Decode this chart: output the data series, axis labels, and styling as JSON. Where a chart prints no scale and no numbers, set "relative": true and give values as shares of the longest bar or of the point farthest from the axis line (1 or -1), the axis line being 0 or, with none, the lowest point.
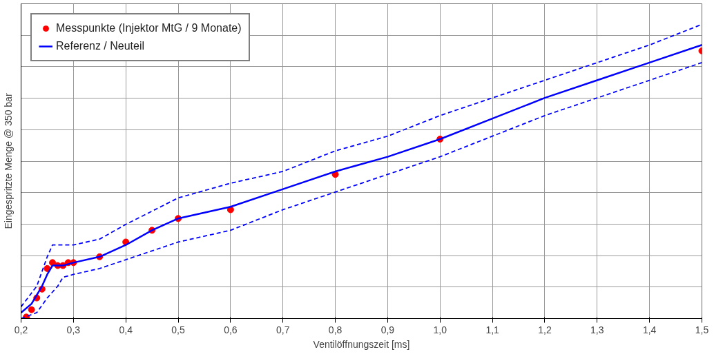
{
  "chart_data": {
    "type": "line",
    "relative": true,
    "xlabel": "Ventilöffnungszeit [ms]",
    "ylabel": "Eingespritzte Menge @ 350 bar",
    "xlim": [
      0.2,
      1.5
    ],
    "xticks": [
      {
        "value": 0.2,
        "label": "0,2"
      },
      {
        "value": 0.3,
        "label": "0,3"
      },
      {
        "value": 0.4,
        "label": "0,4"
      },
      {
        "value": 0.5,
        "label": "0,5"
      },
      {
        "value": 0.6,
        "label": "0,6"
      },
      {
        "value": 0.7,
        "label": "0,7"
      },
      {
        "value": 0.8,
        "label": "0,8"
      },
      {
        "value": 0.9,
        "label": "0,9"
      },
      {
        "value": 1.0,
        "label": "1,0"
      },
      {
        "value": 1.1,
        "label": "1,1"
      },
      {
        "value": 1.2,
        "label": "1,2"
      },
      {
        "value": 1.3,
        "label": "1,3"
      },
      {
        "value": 1.4,
        "label": "1,4"
      },
      {
        "value": 1.5,
        "label": "1,5"
      }
    ],
    "grid": true,
    "legend": "top left",
    "series": [
      {
        "type": "scatter",
        "name": "Messpunkte (Injektor MtG / 9 Monate)",
        "color": "#ff0000",
        "marker": "circle",
        "x": [
          0.21,
          0.22,
          0.23,
          0.24,
          0.25,
          0.26,
          0.27,
          0.28,
          0.29,
          0.3,
          0.35,
          0.4,
          0.45,
          0.5,
          0.6,
          0.8,
          1.0,
          1.5
        ],
        "values": [
          0.005,
          0.03,
          0.07,
          0.1,
          0.17,
          0.19,
          0.18,
          0.18,
          0.19,
          0.19,
          0.21,
          0.26,
          0.3,
          0.34,
          0.37,
          0.49,
          0.61,
          0.91
        ]
      },
      {
        "name": "Referenz / Neuteil",
        "color": "#0000ff",
        "line_style": "solid",
        "x": [
          0.2,
          0.22,
          0.24,
          0.25,
          0.26,
          0.28,
          0.3,
          0.35,
          0.4,
          0.45,
          0.5,
          0.55,
          0.6,
          0.7,
          0.8,
          0.9,
          1.0,
          1.1,
          1.2,
          1.3,
          1.4,
          1.5
        ],
        "values": [
          0.02,
          0.05,
          0.11,
          0.15,
          0.18,
          0.18,
          0.19,
          0.21,
          0.25,
          0.3,
          0.34,
          0.36,
          0.38,
          0.44,
          0.5,
          0.55,
          0.61,
          0.68,
          0.75,
          0.81,
          0.87,
          0.93
        ]
      },
      {
        "color": "#0000ff",
        "line_style": "dashed",
        "x": [
          0.2,
          0.23,
          0.25,
          0.26,
          0.28,
          0.3,
          0.35,
          0.4,
          0.5,
          0.6,
          0.7,
          0.8,
          0.9,
          1.0,
          1.1,
          1.2,
          1.3,
          1.4,
          1.5
        ],
        "values": [
          0.04,
          0.11,
          0.21,
          0.25,
          0.25,
          0.25,
          0.27,
          0.32,
          0.41,
          0.46,
          0.5,
          0.57,
          0.62,
          0.69,
          0.75,
          0.81,
          0.87,
          0.93,
          1.0
        ]
      },
      {
        "color": "#0000ff",
        "line_style": "dashed",
        "x": [
          0.2,
          0.23,
          0.25,
          0.27,
          0.28,
          0.3,
          0.35,
          0.4,
          0.5,
          0.6,
          0.7,
          0.8,
          0.9,
          1.0,
          1.1,
          1.2,
          1.3,
          1.4,
          1.5
        ],
        "values": [
          0.0,
          0.02,
          0.07,
          0.11,
          0.14,
          0.15,
          0.17,
          0.2,
          0.26,
          0.3,
          0.37,
          0.43,
          0.49,
          0.55,
          0.62,
          0.69,
          0.75,
          0.81,
          0.87
        ]
      }
    ]
  }
}
